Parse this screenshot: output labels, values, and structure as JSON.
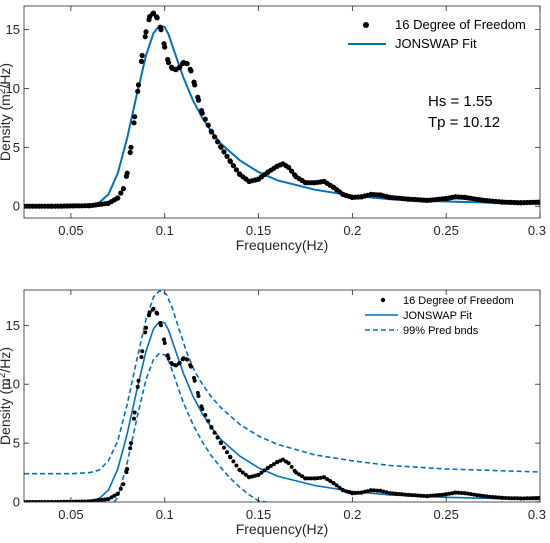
{
  "chart_data": [
    {
      "type": "scatter+line",
      "xlabel": "Frequency(Hz)",
      "ylabel": "Density (m²/Hz)",
      "xlim": [
        0.025,
        0.3
      ],
      "ylim": [
        -1,
        17
      ],
      "xticks": [
        0.05,
        0.1,
        0.15,
        0.2,
        0.25,
        0.3
      ],
      "xtick_labels": [
        "0.05",
        "0.1",
        "0.15",
        "0.2",
        "0.25",
        "0.3"
      ],
      "yticks": [
        0,
        5,
        10,
        15
      ],
      "ytick_labels": [
        "0",
        "5",
        "10",
        "15"
      ],
      "legend": [
        "16 Degree of Freedom",
        "JONSWAP Fit"
      ],
      "annotations": [
        "Hs = 1.55",
        "Tp = 10.12"
      ],
      "grid": false,
      "legend_position": "top-right",
      "series": [
        {
          "name": "16 Degree of Freedom",
          "style": "dots",
          "x": [
            0.025,
            0.04,
            0.06,
            0.07,
            0.075,
            0.078,
            0.08,
            0.082,
            0.084,
            0.086,
            0.088,
            0.09,
            0.092,
            0.094,
            0.096,
            0.098,
            0.1,
            0.102,
            0.104,
            0.106,
            0.108,
            0.11,
            0.112,
            0.114,
            0.116,
            0.118,
            0.12,
            0.125,
            0.13,
            0.135,
            0.14,
            0.145,
            0.15,
            0.155,
            0.16,
            0.163,
            0.166,
            0.17,
            0.175,
            0.18,
            0.185,
            0.19,
            0.195,
            0.2,
            0.205,
            0.21,
            0.215,
            0.22,
            0.23,
            0.24,
            0.25,
            0.255,
            0.26,
            0.27,
            0.28,
            0.29,
            0.3
          ],
          "y": [
            0,
            0,
            0.05,
            0.25,
            0.7,
            1.5,
            2.8,
            5,
            7.6,
            10.3,
            12.8,
            14.8,
            16.1,
            16.4,
            16,
            15,
            13.5,
            12.2,
            11.7,
            11.6,
            11.8,
            12.2,
            12.1,
            11.5,
            10.3,
            9,
            7.9,
            6.3,
            5,
            3.8,
            2.7,
            2.1,
            2.3,
            2.9,
            3.4,
            3.6,
            3.3,
            2.5,
            2,
            2,
            2.1,
            1.6,
            1,
            0.75,
            0.8,
            1,
            0.95,
            0.75,
            0.6,
            0.5,
            0.65,
            0.8,
            0.75,
            0.5,
            0.35,
            0.3,
            0.35
          ]
        },
        {
          "name": "JONSWAP Fit",
          "style": "solid",
          "color": "#0072BD",
          "x": [
            0.025,
            0.05,
            0.06,
            0.065,
            0.07,
            0.075,
            0.08,
            0.085,
            0.09,
            0.094,
            0.096,
            0.098,
            0.1,
            0.102,
            0.105,
            0.11,
            0.115,
            0.12,
            0.125,
            0.13,
            0.14,
            0.15,
            0.16,
            0.18,
            0.2,
            0.22,
            0.25,
            0.3
          ],
          "y": [
            0,
            0,
            0.1,
            0.3,
            1,
            2.8,
            5.8,
            9.4,
            12.8,
            14.7,
            15.1,
            15.3,
            15.2,
            14.6,
            13.2,
            10.9,
            9,
            7.5,
            6.3,
            5.3,
            3.9,
            2.9,
            2.2,
            1.4,
            0.9,
            0.6,
            0.4,
            0.2
          ]
        }
      ]
    },
    {
      "type": "scatter+line",
      "xlabel": "Frequency(Hz)",
      "ylabel": "Density (m²/Hz)",
      "xlim": [
        0.025,
        0.3
      ],
      "ylim": [
        0,
        18
      ],
      "xticks": [
        0.05,
        0.1,
        0.15,
        0.2,
        0.25,
        0.3
      ],
      "xtick_labels": [
        "0.05",
        "0.1",
        "0.15",
        "0.2",
        "0.25",
        "0.3"
      ],
      "yticks": [
        0,
        5,
        10,
        15
      ],
      "ytick_labels": [
        "0",
        "5",
        "10",
        "15"
      ],
      "legend": [
        "16 Degree of Freedom",
        "JONSWAP Fit",
        "99% Pred bnds"
      ],
      "grid": false,
      "legend_position": "top-right",
      "series": [
        {
          "name": "16 Degree of Freedom",
          "style": "dots",
          "x": [
            0.025,
            0.04,
            0.06,
            0.07,
            0.075,
            0.078,
            0.08,
            0.082,
            0.084,
            0.086,
            0.088,
            0.09,
            0.092,
            0.094,
            0.096,
            0.098,
            0.1,
            0.102,
            0.104,
            0.106,
            0.108,
            0.11,
            0.112,
            0.114,
            0.116,
            0.118,
            0.12,
            0.125,
            0.13,
            0.135,
            0.14,
            0.145,
            0.15,
            0.155,
            0.16,
            0.163,
            0.166,
            0.17,
            0.175,
            0.18,
            0.185,
            0.19,
            0.195,
            0.2,
            0.205,
            0.21,
            0.215,
            0.22,
            0.23,
            0.24,
            0.25,
            0.255,
            0.26,
            0.27,
            0.28,
            0.29,
            0.3
          ],
          "y": [
            0,
            0,
            0.05,
            0.25,
            0.7,
            1.5,
            2.8,
            5,
            7.6,
            10.3,
            12.8,
            14.8,
            16.1,
            16.4,
            16,
            15,
            13.5,
            12.2,
            11.7,
            11.6,
            11.8,
            12.2,
            12.1,
            11.5,
            10.3,
            9,
            7.9,
            6.3,
            5,
            3.8,
            2.7,
            2.1,
            2.3,
            2.9,
            3.4,
            3.6,
            3.3,
            2.5,
            2,
            2,
            2.1,
            1.6,
            1,
            0.75,
            0.8,
            1,
            0.95,
            0.75,
            0.6,
            0.5,
            0.65,
            0.8,
            0.75,
            0.5,
            0.35,
            0.3,
            0.35
          ]
        },
        {
          "name": "JONSWAP Fit",
          "style": "solid",
          "color": "#0072BD",
          "x": [
            0.025,
            0.05,
            0.06,
            0.065,
            0.07,
            0.075,
            0.08,
            0.085,
            0.09,
            0.094,
            0.096,
            0.098,
            0.1,
            0.102,
            0.105,
            0.11,
            0.115,
            0.12,
            0.125,
            0.13,
            0.14,
            0.15,
            0.16,
            0.18,
            0.2,
            0.22,
            0.25,
            0.3
          ],
          "y": [
            0,
            0,
            0.1,
            0.3,
            1,
            2.8,
            5.8,
            9.4,
            12.8,
            14.7,
            15.1,
            15.3,
            15.2,
            14.6,
            13.2,
            10.9,
            9,
            7.5,
            6.3,
            5.3,
            3.9,
            2.9,
            2.2,
            1.4,
            0.9,
            0.6,
            0.4,
            0.2
          ]
        },
        {
          "name": "99% Pred bnds",
          "style": "dashed",
          "color": "#0072BD",
          "x": [
            0.025,
            0.05,
            0.06,
            0.065,
            0.07,
            0.075,
            0.08,
            0.085,
            0.09,
            0.094,
            0.097,
            0.099,
            0.101,
            0.104,
            0.108,
            0.112,
            0.116,
            0.12,
            0.125,
            0.13,
            0.14,
            0.15,
            0.16,
            0.18,
            0.2,
            0.22,
            0.25,
            0.3
          ],
          "y": [
            2.4,
            2.4,
            2.5,
            2.7,
            3.5,
            5.2,
            8.3,
            12,
            15.5,
            17.4,
            17.9,
            17.9,
            17.6,
            16.5,
            14.5,
            12.6,
            11.1,
            10,
            8.9,
            8,
            6.6,
            5.6,
            4.9,
            4,
            3.5,
            3.1,
            2.8,
            2.55
          ]
        },
        {
          "name": "99% Pred bnds",
          "style": "dashed",
          "color": "#0072BD",
          "x": [
            0.073,
            0.075,
            0.08,
            0.085,
            0.09,
            0.094,
            0.097,
            0.1,
            0.102,
            0.105,
            0.11,
            0.115,
            0.12,
            0.125,
            0.13,
            0.135,
            0.14,
            0.145,
            0.15,
            0.154
          ],
          "y": [
            0,
            0.4,
            3.3,
            7,
            10.4,
            12.1,
            12.6,
            12.5,
            12,
            10.7,
            8.4,
            6.6,
            5.1,
            3.9,
            2.9,
            2,
            1.25,
            0.6,
            0.1,
            0
          ]
        }
      ]
    }
  ]
}
